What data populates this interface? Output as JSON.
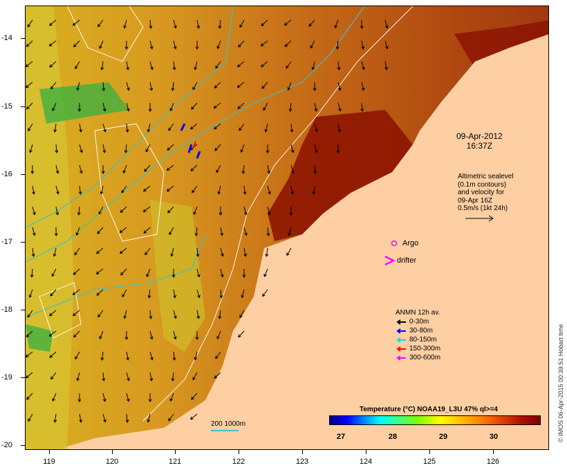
{
  "map": {
    "x_ticks": [
      "119",
      "120",
      "121",
      "122",
      "123",
      "124",
      "125",
      "126"
    ],
    "y_ticks": [
      "-14",
      "-15",
      "-16",
      "-17",
      "-18",
      "-19",
      "-20"
    ],
    "datetime_line1": "09-Apr-2012",
    "datetime_line2": "16:37Z",
    "altimetry_lines": [
      "Altimetric sealevel",
      "(0.1m contours)",
      "and velocity for",
      "09-Apr 16Z",
      "0.5m/s (1kt 24h)"
    ],
    "argo_label": "Argo",
    "drifter_label": "drifter",
    "legend_title": "ANMN 12h av.",
    "legend_items": [
      {
        "label": "0-30m",
        "color": "#000000"
      },
      {
        "label": "30-80m",
        "color": "#0000ff"
      },
      {
        "label": "80-150m",
        "color": "#00e0e0"
      },
      {
        "label": "150-300m",
        "color": "#ff0000"
      },
      {
        "label": "300-600m",
        "color": "#ff00ff"
      }
    ],
    "colorbar_title": "Temperature (°C) NOAA19_L3U 47% ql>=4",
    "colorbar_ticks": [
      "27",
      "28",
      "29",
      "30"
    ],
    "scalebar_label": "200  1000m",
    "credit": "© IMOS 06-Apr-2015 00:39:51 Hobart time",
    "colors": {
      "land": "#fdcfa3",
      "warm": "#b04000",
      "hot": "#8b0000",
      "cool": "#e0c000",
      "bathy": "#40c0c0",
      "contour": "#ffffff"
    }
  }
}
